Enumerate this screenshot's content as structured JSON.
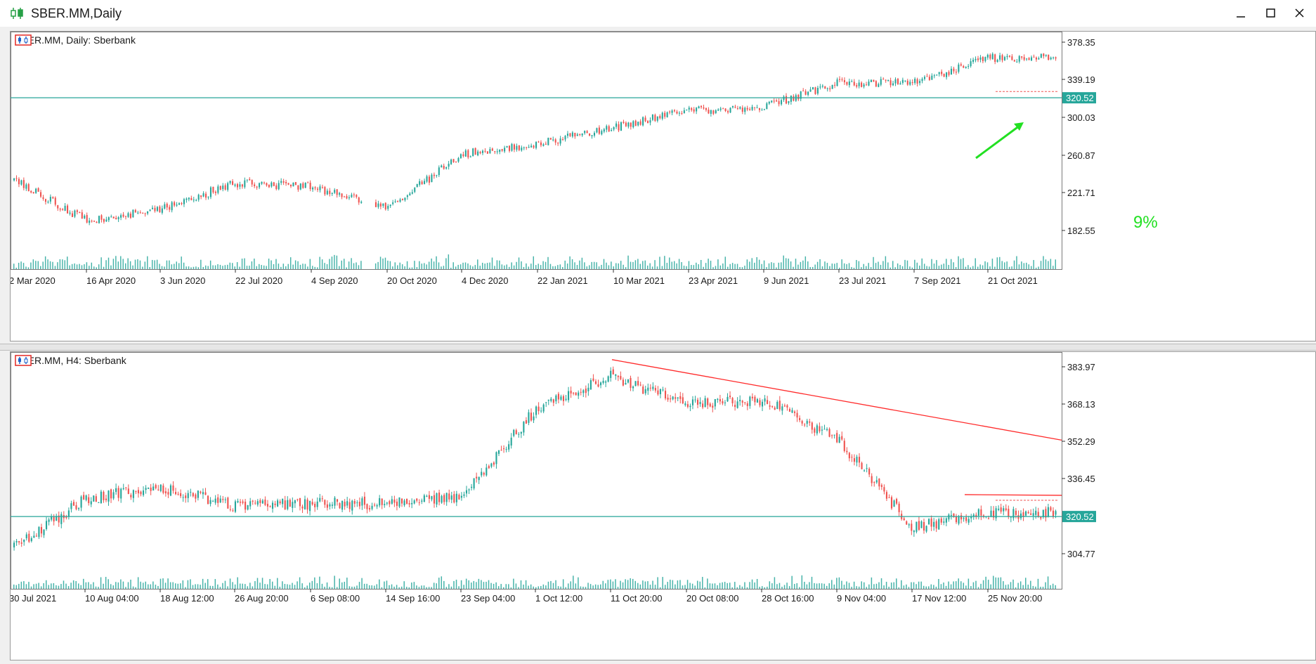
{
  "window": {
    "title": "SBER.MM,Daily",
    "minimize_icon": "minimize-icon",
    "maximize_icon": "maximize-icon",
    "close_icon": "close-icon"
  },
  "colors": {
    "bull": "#26a69a",
    "bear": "#ef5350",
    "level_line": "#26a69a",
    "trendline": "#ff2a2a",
    "annotation": "#22e022",
    "volume": "#26a69a"
  },
  "panels": [
    {
      "header": "SBER.MM, Daily:  Sberbank",
      "price_axis_labels": [
        "378.35",
        "339.19",
        "300.03",
        "260.87",
        "221.71",
        "182.55"
      ],
      "current_price_label": "320.52",
      "time_axis_labels": [
        "2 Mar 2020",
        "16 Apr 2020",
        "3 Jun 2020",
        "22 Jul 2020",
        "4 Sep 2020",
        "20 Oct 2020",
        "4 Dec 2020",
        "22 Jan 2021",
        "10 Mar 2021",
        "23 Apr 2021",
        "9 Jun 2021",
        "23 Jul 2021",
        "7 Sep 2021",
        "21 Oct 2021"
      ],
      "annotation": {
        "text": "9%"
      }
    },
    {
      "header": "SBER.MM, H4:  Sberbank",
      "price_axis_labels": [
        "383.97",
        "368.13",
        "352.29",
        "336.45",
        "320.52",
        "304.77"
      ],
      "current_price_label": "320.52",
      "time_axis_labels": [
        "30 Jul 2021",
        "10 Aug 04:00",
        "18 Aug 12:00",
        "26 Aug 20:00",
        "6 Sep 08:00",
        "14 Sep 16:00",
        "23 Sep 04:00",
        "1 Oct 12:00",
        "11 Oct 20:00",
        "20 Oct 08:00",
        "28 Oct 16:00",
        "9 Nov 04:00",
        "17 Nov 12:00",
        "25 Nov 20:00"
      ]
    }
  ],
  "chart_data": [
    {
      "type": "line",
      "title": "SBER.MM, Daily:  Sberbank",
      "y_ticks": [
        378.35,
        339.19,
        300.03,
        260.87,
        221.71,
        182.55
      ],
      "ylim": [
        158,
        392
      ],
      "level_line": 320.52,
      "series": [
        {
          "name": "Sberbank",
          "x": [
            "2 Mar 2020",
            "16 Apr 2020",
            "3 Jun 2020",
            "22 Jul 2020",
            "4 Sep 2020",
            "20 Oct 2020",
            "4 Dec 2020",
            "22 Jan 2021",
            "10 Mar 2021",
            "23 Apr 2021",
            "9 Jun 2021",
            "23 Jul 2021",
            "7 Sep 2021",
            "21 Oct 2021"
          ],
          "values": [
            236,
            192,
            205,
            232,
            228,
            205,
            262,
            272,
            290,
            307,
            311,
            336,
            336,
            362
          ]
        }
      ]
    },
    {
      "type": "line",
      "title": "SBER.MM, H4:  Sberbank",
      "y_ticks": [
        383.97,
        368.13,
        352.29,
        336.45,
        320.52,
        304.77
      ],
      "ylim": [
        296,
        389
      ],
      "level_line": 320.52,
      "series": [
        {
          "name": "Sberbank",
          "x": [
            "30 Jul 2021",
            "10 Aug 04:00",
            "18 Aug 12:00",
            "26 Aug 20:00",
            "6 Sep 08:00",
            "14 Sep 16:00",
            "23 Sep 04:00",
            "1 Oct 12:00",
            "11 Oct 20:00",
            "20 Oct 08:00",
            "28 Oct 16:00",
            "9 Nov 04:00",
            "17 Nov 12:00",
            "25 Nov 20:00"
          ],
          "values": [
            307,
            328,
            333,
            325,
            326,
            326,
            329,
            366,
            380,
            368,
            370,
            353,
            316,
            322
          ]
        }
      ]
    }
  ]
}
